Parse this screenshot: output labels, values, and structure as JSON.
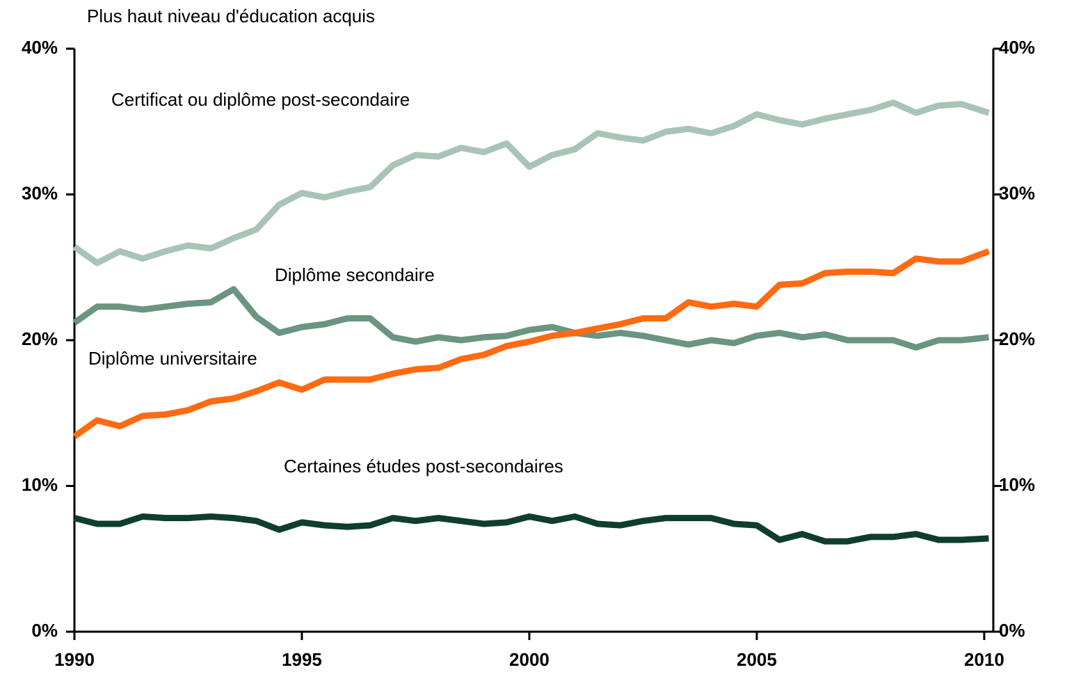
{
  "chart_data": {
    "type": "line",
    "title": "Plus haut niveau d'éducation acquis",
    "x": [
      1990,
      1990.5,
      1991,
      1991.5,
      1992,
      1992.5,
      1993,
      1993.5,
      1994,
      1994.5,
      1995,
      1995.5,
      1996,
      1996.5,
      1997,
      1997.5,
      1998,
      1998.5,
      1999,
      1999.5,
      2000,
      2000.5,
      2001,
      2001.5,
      2002,
      2002.5,
      2003,
      2003.5,
      2004,
      2004.5,
      2005,
      2005.5,
      2006,
      2006.5,
      2007,
      2007.5,
      2008,
      2008.5,
      2009,
      2009.5,
      2010.1
    ],
    "series": [
      {
        "name": "Certificat ou diplôme post-secondaire",
        "color": "#a9c4b6",
        "values": [
          26.4,
          25.3,
          26.1,
          25.6,
          26.1,
          26.5,
          26.3,
          27.0,
          27.6,
          29.3,
          30.1,
          29.8,
          30.2,
          30.5,
          32.0,
          32.7,
          32.6,
          33.2,
          32.9,
          33.5,
          31.9,
          32.7,
          33.1,
          34.2,
          33.9,
          33.7,
          34.3,
          34.5,
          34.2,
          34.7,
          35.5,
          35.1,
          34.8,
          35.2,
          35.5,
          35.8,
          36.3,
          35.6,
          36.1,
          36.2,
          35.6
        ]
      },
      {
        "name": "Diplôme secondaire",
        "color": "#6a9580",
        "values": [
          21.2,
          22.3,
          22.3,
          22.1,
          22.3,
          22.5,
          22.6,
          23.5,
          21.6,
          20.5,
          20.9,
          21.1,
          21.5,
          21.5,
          20.2,
          19.9,
          20.2,
          20.0,
          20.2,
          20.3,
          20.7,
          20.9,
          20.5,
          20.3,
          20.5,
          20.3,
          20.0,
          19.7,
          20.0,
          19.8,
          20.3,
          20.5,
          20.2,
          20.4,
          20.0,
          20.0,
          20.0,
          19.5,
          20.0,
          20.0,
          20.2
        ]
      },
      {
        "name": "Diplôme universitaire",
        "color": "#ff6a13",
        "values": [
          13.4,
          14.5,
          14.1,
          14.8,
          14.9,
          15.2,
          15.8,
          16.0,
          16.5,
          17.1,
          16.6,
          17.3,
          17.3,
          17.3,
          17.7,
          18.0,
          18.1,
          18.7,
          19.0,
          19.6,
          19.9,
          20.3,
          20.5,
          20.8,
          21.1,
          21.5,
          21.5,
          22.6,
          22.3,
          22.5,
          22.3,
          23.8,
          23.9,
          24.6,
          24.7,
          24.7,
          24.6,
          25.6,
          25.4,
          25.4,
          26.1
        ]
      },
      {
        "name": "Certaines études post-secondaires",
        "color": "#0f3d2e",
        "values": [
          7.8,
          7.4,
          7.4,
          7.9,
          7.8,
          7.8,
          7.9,
          7.8,
          7.6,
          7.0,
          7.5,
          7.3,
          7.2,
          7.3,
          7.8,
          7.6,
          7.8,
          7.6,
          7.4,
          7.5,
          7.9,
          7.6,
          7.9,
          7.4,
          7.3,
          7.6,
          7.8,
          7.8,
          7.8,
          7.4,
          7.3,
          6.3,
          6.7,
          6.2,
          6.2,
          6.5,
          6.5,
          6.7,
          6.3,
          6.3,
          6.4
        ]
      }
    ],
    "xlim": [
      1990,
      2010.2
    ],
    "xticks": [
      1990,
      1995,
      2000,
      2005,
      2010
    ],
    "ylim": [
      0,
      40
    ],
    "yticks": [
      {
        "value": 0,
        "label": "0%"
      },
      {
        "value": 10,
        "label": "10%"
      },
      {
        "value": 20,
        "label": "20%"
      },
      {
        "value": 30,
        "label": "30%"
      },
      {
        "value": 40,
        "label": "40%"
      }
    ],
    "y2lim": [
      0,
      40
    ],
    "y2ticks": [
      {
        "value": 0,
        "label": "0%"
      },
      {
        "value": 10,
        "label": "10%"
      },
      {
        "value": 20,
        "label": "20%"
      },
      {
        "value": 30,
        "label": "30%"
      },
      {
        "value": 40,
        "label": "40%"
      }
    ]
  }
}
